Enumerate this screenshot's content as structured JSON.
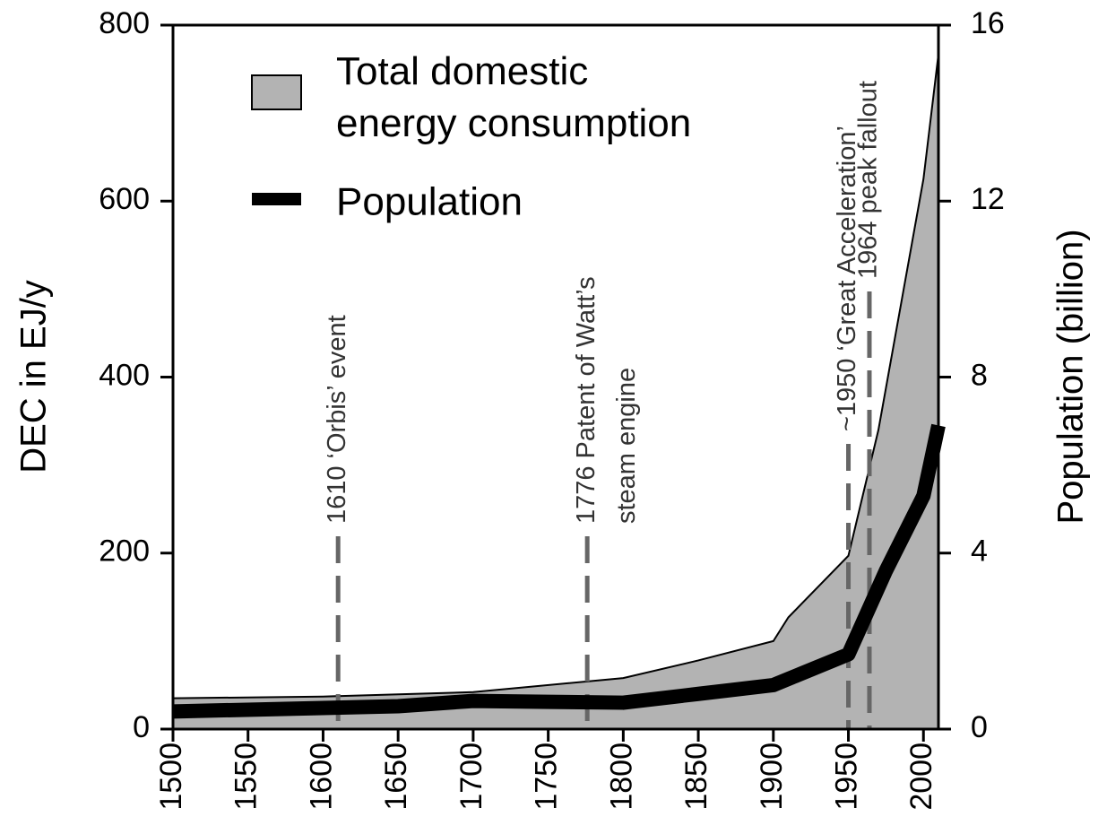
{
  "chart_data": {
    "type": "area-line",
    "ylabel": "DEC in EJ/y",
    "y2label": "Population (billion)",
    "xlim": [
      1500,
      2010
    ],
    "xticks": [
      1500,
      1550,
      1600,
      1650,
      1700,
      1750,
      1800,
      1850,
      1900,
      1950,
      2000
    ],
    "ylim": [
      0,
      800
    ],
    "yticks": [
      0,
      200,
      400,
      600,
      800
    ],
    "y2lim": [
      0,
      16
    ],
    "y2ticks": [
      0,
      4,
      8,
      12,
      16
    ],
    "series": [
      {
        "name": "Total domestic energy consumption",
        "type": "area",
        "color": "#b3b3b3",
        "x": [
          1500,
          1600,
          1700,
          1800,
          1850,
          1900,
          1910,
          1950,
          1970,
          2000,
          2010
        ],
        "values": [
          35,
          37,
          42,
          58,
          78,
          100,
          127,
          197,
          340,
          625,
          767
        ]
      },
      {
        "name": "Population",
        "type": "line",
        "axis": "y2",
        "color": "#000000",
        "x": [
          1500,
          1600,
          1650,
          1700,
          1750,
          1800,
          1850,
          1900,
          1950,
          1975,
          2000,
          2010
        ],
        "values": [
          0.4,
          0.48,
          0.52,
          0.64,
          0.62,
          0.6,
          0.8,
          1.0,
          1.7,
          3.6,
          5.3,
          6.9
        ]
      }
    ],
    "annotations": [
      {
        "x": 1610,
        "lines": [
          "1610 ‘Orbis’ event"
        ]
      },
      {
        "x": 1776,
        "lines": [
          "1776 Patent of Watt’s",
          "steam engine"
        ]
      },
      {
        "x": 1950,
        "lines": [
          "~1950 ‘Great Acceleration’"
        ]
      },
      {
        "x": 1964,
        "lines": [
          "1964 peak fallout"
        ]
      }
    ]
  }
}
